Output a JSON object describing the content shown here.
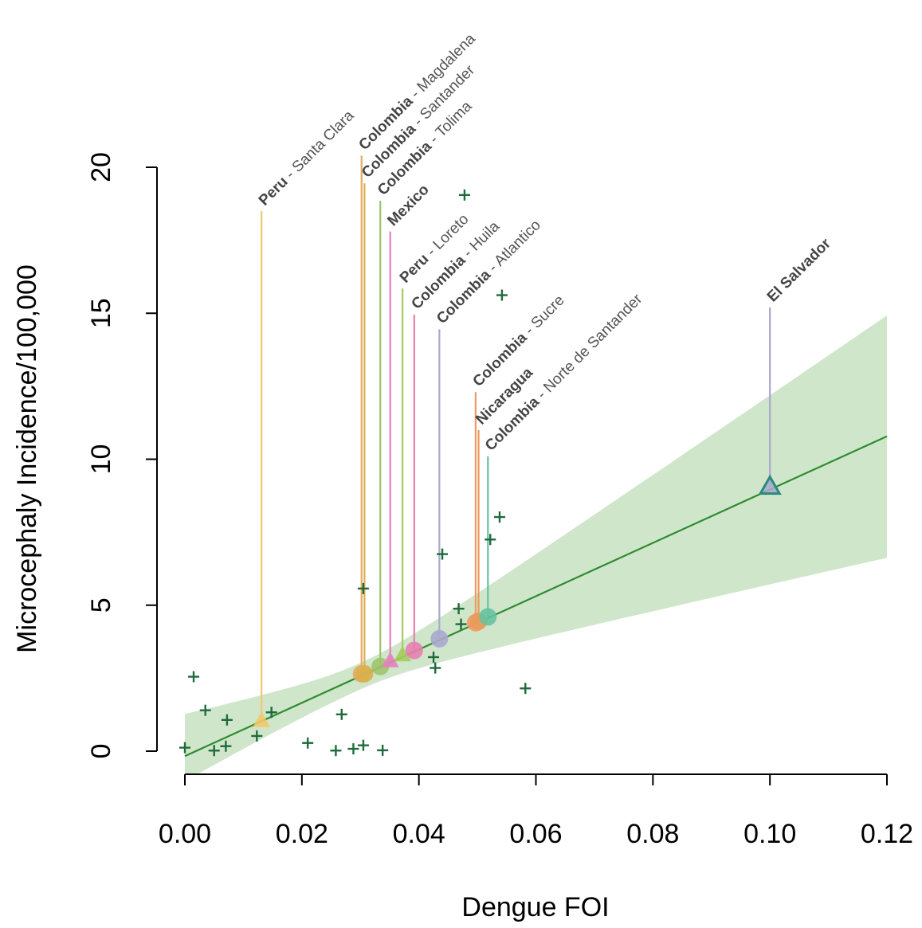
{
  "chart_data": {
    "type": "scatter",
    "title": "",
    "xlabel": "Dengue FOI",
    "ylabel": "Microcephaly Incidence/100,000",
    "xlim": [
      0,
      0.12
    ],
    "ylim": [
      0,
      20
    ],
    "x_ticks": [
      "0.00",
      "0.02",
      "0.04",
      "0.06",
      "0.08",
      "0.10",
      "0.12"
    ],
    "y_ticks": [
      "0",
      "5",
      "10",
      "15",
      "20"
    ],
    "colors": {
      "line": "#2e8b2e",
      "band": "#cfe6cb",
      "cross": "#1f6b3c"
    },
    "fit": {
      "intercept": -0.17,
      "slope": 91.3,
      "band_upper_at_xmax": 14.9,
      "band_lower_at_xmax": 6.65,
      "band_upper_at_x0": 1.2,
      "band_lower_at_x0": -0.9
    },
    "crosses": [
      [
        0.0,
        0.12
      ],
      [
        0.0015,
        2.55
      ],
      [
        0.0035,
        1.4
      ],
      [
        0.005,
        0.02
      ],
      [
        0.007,
        0.17
      ],
      [
        0.0072,
        1.07
      ],
      [
        0.0123,
        0.52
      ],
      [
        0.0148,
        1.33
      ],
      [
        0.021,
        0.28
      ],
      [
        0.0258,
        0.02
      ],
      [
        0.0268,
        1.26
      ],
      [
        0.0288,
        0.08
      ],
      [
        0.0305,
        0.2
      ],
      [
        0.0305,
        5.57
      ],
      [
        0.0338,
        0.03
      ],
      [
        0.0425,
        3.22
      ],
      [
        0.0428,
        2.85
      ],
      [
        0.044,
        6.75
      ],
      [
        0.0468,
        4.88
      ],
      [
        0.0472,
        4.35
      ],
      [
        0.0478,
        19.05
      ],
      [
        0.0522,
        7.25
      ],
      [
        0.0538,
        8.02
      ],
      [
        0.0542,
        15.62
      ],
      [
        0.0582,
        2.15
      ]
    ],
    "regions": [
      {
        "country": "Peru",
        "region": "Santa Clara",
        "x": 0.0131,
        "y": 1.05,
        "top": 18.5,
        "color": "#f0c96c",
        "marker": "triangle"
      },
      {
        "country": "Colombia",
        "region": "Magdalena",
        "x": 0.0302,
        "y": 2.65,
        "top": 20.4,
        "color": "#e8a860",
        "marker": "circle"
      },
      {
        "country": "Colombia",
        "region": "Santander",
        "x": 0.0307,
        "y": 2.65,
        "top": 19.45,
        "color": "#d8b04e",
        "marker": "circle"
      },
      {
        "country": "Colombia",
        "region": "Tolima",
        "x": 0.0334,
        "y": 2.9,
        "top": 18.85,
        "color": "#9fc46c",
        "marker": "circle"
      },
      {
        "country": "Mexico",
        "region": "",
        "x": 0.0351,
        "y": 3.1,
        "top": 17.8,
        "color": "#e67fbf",
        "marker": "triangle"
      },
      {
        "country": "Peru",
        "region": "Loreto",
        "x": 0.0372,
        "y": 3.3,
        "top": 15.85,
        "color": "#a6cc5d",
        "marker": "triangle"
      },
      {
        "country": "Colombia",
        "region": "Huila",
        "x": 0.0392,
        "y": 3.45,
        "top": 14.95,
        "color": "#e77fb0",
        "marker": "circle"
      },
      {
        "country": "Colombia",
        "region": "Atlantico",
        "x": 0.0435,
        "y": 3.85,
        "top": 14.45,
        "color": "#a9a9cf",
        "marker": "circle"
      },
      {
        "country": "Colombia",
        "region": "Sucre",
        "x": 0.0497,
        "y": 4.4,
        "top": 12.3,
        "color": "#f29a62",
        "marker": "circle"
      },
      {
        "country": "Nicaragua",
        "region": "",
        "x": 0.0502,
        "y": 4.45,
        "top": 11.0,
        "color": "#e89b5a",
        "marker": "circle"
      },
      {
        "country": "Colombia",
        "region": "Norte de Santander",
        "x": 0.0518,
        "y": 4.6,
        "top": 10.1,
        "color": "#67c2a1",
        "marker": "circle"
      },
      {
        "country": "El Salvador",
        "region": "",
        "x": 0.1,
        "y": 9.07,
        "top": 15.2,
        "color": "#a9a9cf",
        "marker": "triangle-open",
        "edge": "#2a8a7e"
      }
    ]
  }
}
